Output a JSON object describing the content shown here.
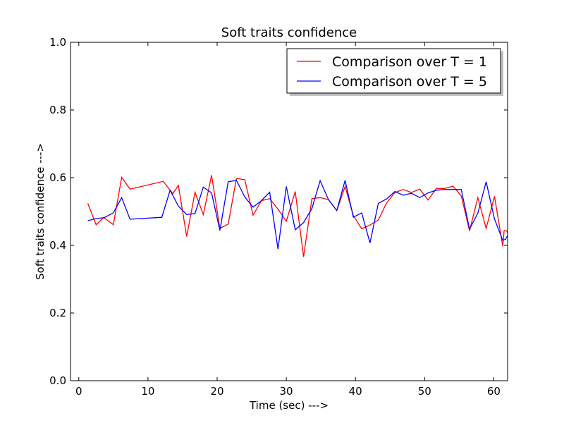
{
  "chart_data": {
    "type": "line",
    "title": "Soft traits confidence",
    "xlabel": "Time (sec) --->",
    "ylabel": "Soft traits confidence --->",
    "xlim": [
      -1.2,
      62
    ],
    "ylim": [
      0.0,
      1.0
    ],
    "xticks": [
      0,
      10,
      20,
      30,
      40,
      50,
      60
    ],
    "yticks": [
      0.0,
      0.2,
      0.4,
      0.6,
      0.8,
      1.0
    ],
    "xtick_labels": [
      "0",
      "10",
      "20",
      "30",
      "40",
      "50",
      "60"
    ],
    "ytick_labels": [
      "0.0",
      "0.2",
      "0.4",
      "0.6",
      "0.8",
      "1.0"
    ],
    "grid": false,
    "legend_position": "top-right",
    "series": [
      {
        "name": "Comparison over T = 1",
        "color": "#ff0000",
        "x": [
          1.3,
          2.5,
          3.6,
          5.0,
          6.2,
          7.4,
          12.2,
          13.6,
          14.4,
          15.6,
          16.8,
          18.0,
          19.2,
          20.4,
          21.6,
          22.8,
          24.0,
          25.2,
          26.4,
          27.6,
          28.8,
          30.0,
          31.3,
          32.5,
          33.7,
          34.9,
          36.1,
          37.3,
          38.5,
          39.7,
          40.9,
          42.1,
          43.3,
          44.5,
          45.7,
          46.9,
          48.1,
          49.3,
          50.5,
          51.7,
          52.9,
          54.1,
          55.3,
          56.5,
          57.7,
          58.9,
          60.1,
          61.3,
          61.5,
          61.9,
          62.0
        ],
        "y": [
          0.524,
          0.461,
          0.482,
          0.461,
          0.601,
          0.566,
          0.589,
          0.553,
          0.577,
          0.426,
          0.557,
          0.491,
          0.607,
          0.45,
          0.463,
          0.598,
          0.594,
          0.489,
          0.532,
          0.538,
          0.507,
          0.471,
          0.559,
          0.366,
          0.538,
          0.541,
          0.535,
          0.503,
          0.574,
          0.488,
          0.449,
          0.46,
          0.475,
          0.525,
          0.556,
          0.565,
          0.556,
          0.566,
          0.534,
          0.568,
          0.568,
          0.575,
          0.546,
          0.443,
          0.541,
          0.45,
          0.545,
          0.397,
          0.444,
          0.442,
          0.436
        ]
      },
      {
        "name": "Comparison over T = 5",
        "color": "#0000ff",
        "x": [
          1.3,
          2.5,
          3.7,
          5.0,
          6.2,
          7.4,
          12.0,
          13.2,
          14.4,
          15.6,
          16.8,
          18.0,
          19.2,
          20.4,
          21.6,
          22.8,
          24.0,
          25.2,
          26.4,
          27.6,
          28.8,
          30.0,
          31.3,
          32.5,
          33.7,
          34.9,
          36.1,
          37.3,
          38.5,
          39.7,
          40.9,
          42.1,
          43.3,
          44.5,
          45.7,
          46.9,
          48.1,
          49.3,
          50.5,
          51.7,
          52.9,
          54.1,
          55.3,
          56.5,
          57.7,
          58.9,
          60.1,
          61.3,
          61.7,
          62.0
        ],
        "y": [
          0.473,
          0.479,
          0.482,
          0.496,
          0.541,
          0.477,
          0.483,
          0.563,
          0.516,
          0.491,
          0.494,
          0.572,
          0.555,
          0.444,
          0.588,
          0.592,
          0.543,
          0.513,
          0.532,
          0.557,
          0.389,
          0.574,
          0.446,
          0.467,
          0.509,
          0.591,
          0.535,
          0.503,
          0.592,
          0.483,
          0.496,
          0.407,
          0.524,
          0.537,
          0.559,
          0.548,
          0.554,
          0.541,
          0.555,
          0.563,
          0.565,
          0.565,
          0.565,
          0.448,
          0.495,
          0.588,
          0.478,
          0.415,
          0.418,
          0.429
        ]
      }
    ]
  }
}
